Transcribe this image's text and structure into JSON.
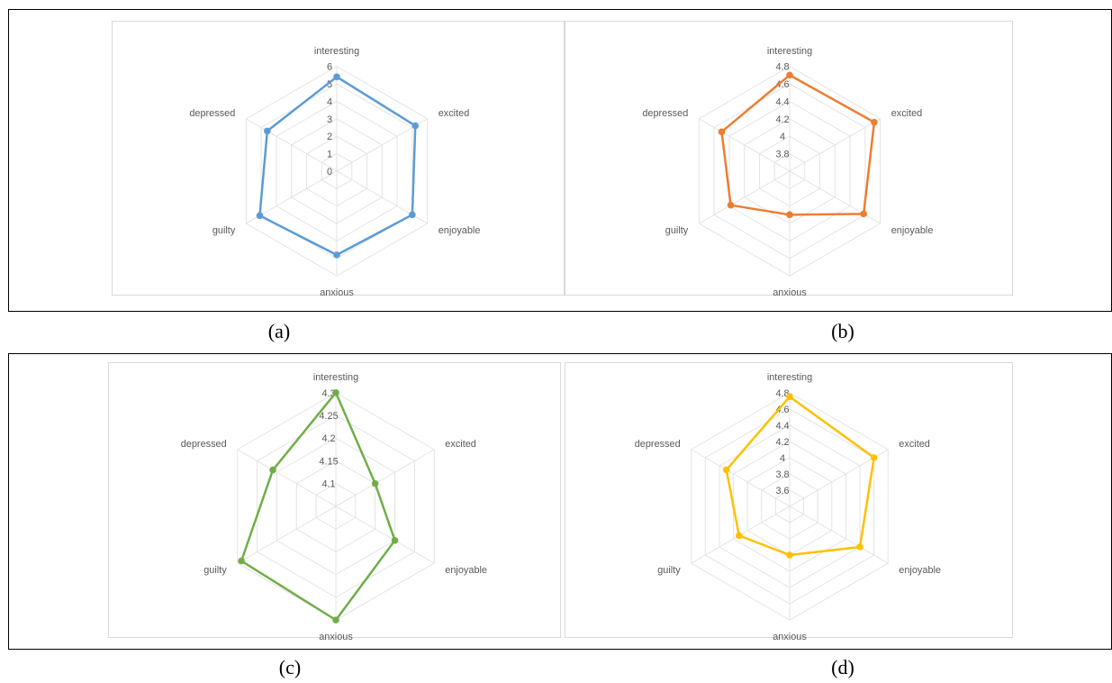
{
  "captions": [
    "(a)",
    "(b)",
    "(c)",
    "(d)"
  ],
  "chart_data": [
    {
      "type": "radar",
      "title": "",
      "categories": [
        "interesting",
        "excited",
        "enjoyable",
        "anxious",
        "guilty",
        "depressed"
      ],
      "ticks": [
        "0",
        "1",
        "2",
        "3",
        "4",
        "5",
        "6"
      ],
      "rmin": 0,
      "rmax": 6,
      "color": "#5b9bd5",
      "series": [
        {
          "values": [
            5.4,
            5.2,
            5.0,
            4.8,
            5.1,
            4.6
          ]
        }
      ]
    },
    {
      "type": "radar",
      "title": "",
      "categories": [
        "interesting",
        "excited",
        "enjoyable",
        "anxious",
        "guilty",
        "depressed"
      ],
      "ticks": [
        "3.8",
        "4",
        "4.2",
        "4.4",
        "4.6",
        "4.8"
      ],
      "rmin": 3.6,
      "rmax": 4.8,
      "color": "#ed7d31",
      "series": [
        {
          "values": [
            4.7,
            4.72,
            4.58,
            4.1,
            4.38,
            4.5
          ]
        }
      ]
    },
    {
      "type": "radar",
      "title": "",
      "categories": [
        "interesting",
        "excited",
        "enjoyable",
        "anxious",
        "guilty",
        "depressed"
      ],
      "ticks": [
        "4.1",
        "4.15",
        "4.2",
        "4.25",
        "4.3"
      ],
      "rmin": 4.05,
      "rmax": 4.3,
      "color": "#70ad47",
      "series": [
        {
          "values": [
            4.3,
            4.15,
            4.2,
            4.3,
            4.29,
            4.21
          ]
        }
      ]
    },
    {
      "type": "radar",
      "title": "",
      "categories": [
        "interesting",
        "excited",
        "enjoyable",
        "anxious",
        "guilty",
        "depressed"
      ],
      "ticks": [
        "3.6",
        "3.8",
        "4",
        "4.2",
        "4.4",
        "4.6",
        "4.8"
      ],
      "rmin": 3.4,
      "rmax": 4.8,
      "color": "#ffc000",
      "series": [
        {
          "values": [
            4.75,
            4.6,
            4.4,
            4.0,
            4.12,
            4.3
          ]
        }
      ]
    }
  ]
}
